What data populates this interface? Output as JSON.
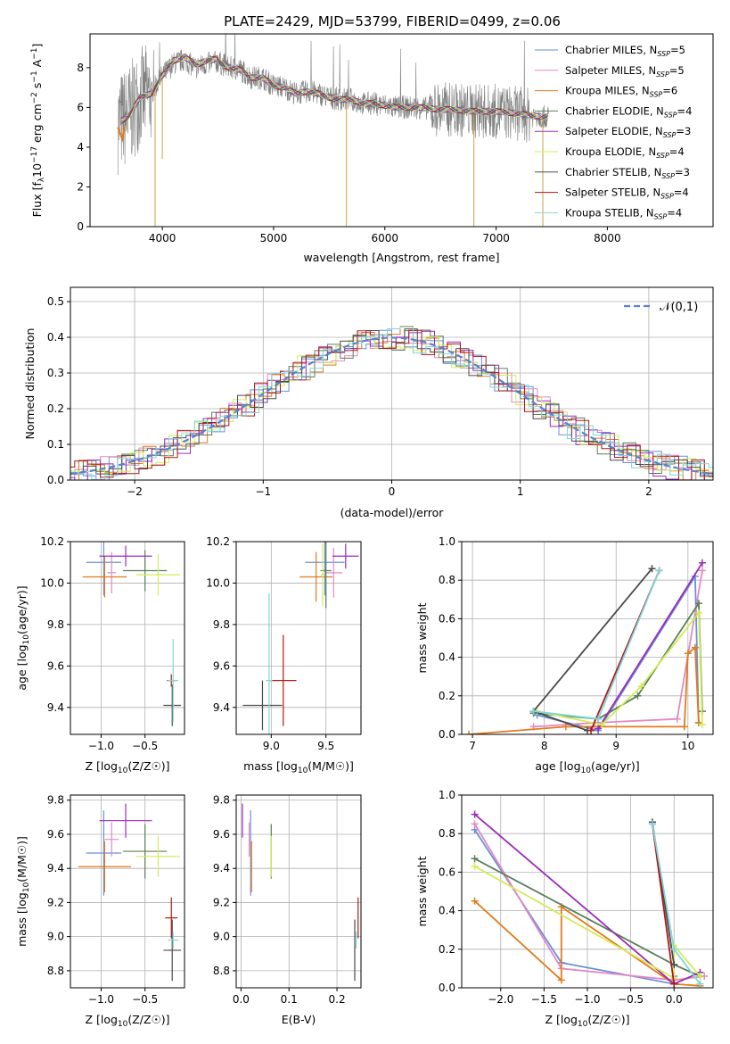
{
  "figure_title": "PLATE=2429, MJD=53799, FIBERID=0499, z=0.06",
  "models": [
    {
      "name": "Chabrier MILES",
      "n": "5",
      "color": "#6a8fdb"
    },
    {
      "name": "Salpeter MILES",
      "n": "5",
      "color": "#e389c2"
    },
    {
      "name": "Kroupa MILES",
      "n": "6",
      "color": "#e07b1e"
    },
    {
      "name": "Chabrier ELODIE",
      "n": "4",
      "color": "#5a7f5a"
    },
    {
      "name": "Salpeter ELODIE",
      "n": "3",
      "color": "#9a2cb8"
    },
    {
      "name": "Kroupa ELODIE",
      "n": "4",
      "color": "#d2ec55"
    },
    {
      "name": "Chabrier STELIB",
      "n": "3",
      "color": "#4b4b4b"
    },
    {
      "name": "Salpeter STELIB",
      "n": "4",
      "color": "#b01818"
    },
    {
      "name": "Kroupa STELIB",
      "n": "4",
      "color": "#7fd6da"
    }
  ],
  "chart_data": [
    {
      "id": "spectrum",
      "type": "line",
      "xlabel": "wavelength [Angstrom, rest frame]",
      "ylabel": "Flux [f",
      "xlim": [
        3350,
        8950
      ],
      "ylim": [
        0,
        9.7
      ],
      "xticks": [
        4000,
        5000,
        6000,
        7000,
        8000
      ],
      "yticks": [
        0,
        2,
        4,
        6,
        8
      ],
      "data_color": "#808080",
      "continuum": [
        [
          3600,
          5.2
        ],
        [
          3700,
          5.6
        ],
        [
          3800,
          6.5
        ],
        [
          3900,
          6.7
        ],
        [
          4000,
          7.6
        ],
        [
          4100,
          8.2
        ],
        [
          4200,
          8.4
        ],
        [
          4300,
          8.0
        ],
        [
          4400,
          8.2
        ],
        [
          4500,
          8.3
        ],
        [
          4600,
          8.0
        ],
        [
          4700,
          7.9
        ],
        [
          4800,
          7.5
        ],
        [
          4900,
          7.5
        ],
        [
          5000,
          7.1
        ],
        [
          5100,
          7.0
        ],
        [
          5200,
          6.7
        ],
        [
          5300,
          6.8
        ],
        [
          5400,
          6.7
        ],
        [
          5500,
          6.5
        ],
        [
          5600,
          6.4
        ],
        [
          5700,
          6.4
        ],
        [
          5800,
          6.2
        ],
        [
          5900,
          6.2
        ],
        [
          6000,
          6.1
        ],
        [
          6100,
          6.0
        ],
        [
          6200,
          6.0
        ],
        [
          6300,
          6.0
        ],
        [
          6400,
          5.95
        ],
        [
          6500,
          5.9
        ],
        [
          6600,
          5.9
        ],
        [
          6700,
          5.85
        ],
        [
          6800,
          5.8
        ],
        [
          6900,
          5.8
        ],
        [
          7000,
          5.8
        ],
        [
          7100,
          5.75
        ],
        [
          7200,
          5.7
        ],
        [
          7300,
          5.6
        ],
        [
          7400,
          5.55
        ],
        [
          7500,
          5.5
        ]
      ],
      "drops": [
        [
          3935,
          0
        ],
        [
          5655,
          0
        ],
        [
          6800,
          0
        ],
        [
          7420,
          0
        ],
        [
          4000,
          3.4
        ]
      ]
    },
    {
      "id": "residuals",
      "type": "bar",
      "xlabel": "(data-model)/error",
      "ylabel": "Normed distribution",
      "xlim": [
        -2.5,
        2.5
      ],
      "ylim": [
        0,
        0.54
      ],
      "xticks": [
        -2,
        -1,
        0,
        1,
        2
      ],
      "yticks": [
        0,
        0.1,
        0.2,
        0.3,
        0.4,
        0.5
      ],
      "legend": "𝒩(0,1)",
      "legend_position": "top-right",
      "curve_color": "#5a82d2",
      "bin_width": 0.1
    },
    {
      "id": "age_vs_Z",
      "type": "scatter",
      "xlabel": "Z [log",
      "ylabel": "age  [log",
      "xlim": [
        -1.35,
        -0.05
      ],
      "ylim": [
        9.27,
        10.2
      ],
      "xticks": [
        -1.0,
        -0.5
      ],
      "yticks": [
        9.4,
        9.6,
        9.8,
        10.0,
        10.2
      ],
      "points": [
        {
          "x": -0.97,
          "y": 10.1,
          "xerr": 0.2,
          "yerr": 0.16,
          "m": 0
        },
        {
          "x": -0.88,
          "y": 10.05,
          "xerr": 0.05,
          "yerr": 0.1,
          "m": 1
        },
        {
          "x": -0.96,
          "y": 10.03,
          "xerr": 0.25,
          "yerr": 0.1,
          "m": 2
        },
        {
          "x": -0.5,
          "y": 10.06,
          "xerr": 0.25,
          "yerr": 0.1,
          "m": 3
        },
        {
          "x": -0.72,
          "y": 10.13,
          "xerr": 0.3,
          "yerr": 0.05,
          "m": 4
        },
        {
          "x": -0.35,
          "y": 10.04,
          "xerr": 0.25,
          "yerr": 0.1,
          "m": 5
        },
        {
          "x": -0.19,
          "y": 9.41,
          "xerr": 0.1,
          "yerr": 0.1,
          "m": 6
        },
        {
          "x": -0.2,
          "y": 9.53,
          "xerr": 0.05,
          "yerr": 0.03,
          "m": 7
        },
        {
          "x": -0.18,
          "y": 9.53,
          "xerr": 0.06,
          "yerr": 0.2,
          "m": 8
        }
      ]
    },
    {
      "id": "age_vs_mass",
      "type": "scatter",
      "xlabel": "mass [log",
      "ylabel": "",
      "xlim": [
        8.68,
        9.82
      ],
      "ylim": [
        9.27,
        10.2
      ],
      "xticks": [
        9.0,
        9.5
      ],
      "yticks": [
        9.4,
        9.6,
        9.8,
        10.0,
        10.2
      ],
      "points": [
        {
          "x": 9.49,
          "y": 10.1,
          "xerr": 0.18,
          "yerr": 0.16,
          "m": 0
        },
        {
          "x": 9.57,
          "y": 10.05,
          "xerr": 0.08,
          "yerr": 0.12,
          "m": 1
        },
        {
          "x": 9.41,
          "y": 10.03,
          "xerr": 0.15,
          "yerr": 0.12,
          "m": 2
        },
        {
          "x": 9.5,
          "y": 10.06,
          "xerr": 0.05,
          "yerr": 0.18,
          "m": 3
        },
        {
          "x": 9.68,
          "y": 10.13,
          "xerr": 0.12,
          "yerr": 0.06,
          "m": 4
        },
        {
          "x": 9.47,
          "y": 10.04,
          "xerr": 0.02,
          "yerr": 0.15,
          "m": 5
        },
        {
          "x": 8.92,
          "y": 9.41,
          "xerr": 0.18,
          "yerr": 0.12,
          "m": 6
        },
        {
          "x": 9.11,
          "y": 9.53,
          "xerr": 0.12,
          "yerr": 0.22,
          "m": 7
        },
        {
          "x": 8.98,
          "y": 9.53,
          "xerr": 0.03,
          "yerr": 0.42,
          "m": 8
        }
      ]
    },
    {
      "id": "weight_vs_age",
      "type": "line",
      "xlabel": "age  [log",
      "ylabel": "mass weight",
      "xlim": [
        6.85,
        10.35
      ],
      "ylim": [
        0,
        1.0
      ],
      "xticks": [
        7,
        8,
        9,
        10
      ],
      "yticks": [
        0,
        0.2,
        0.4,
        0.6,
        0.8,
        1.0
      ],
      "series": [
        {
          "m": 0,
          "x": [
            7.9,
            8.75,
            10.1,
            10.15
          ],
          "y": [
            0.1,
            0.02,
            0.82,
            0.06
          ]
        },
        {
          "m": 1,
          "x": [
            7.85,
            8.7,
            9.85,
            10.2
          ],
          "y": [
            0.04,
            0.06,
            0.08,
            0.85
          ]
        },
        {
          "m": 2,
          "x": [
            6.95,
            8.3,
            9.95,
            10.0,
            10.1,
            10.15
          ],
          "y": [
            0.0,
            0.04,
            0.04,
            0.42,
            0.45,
            0.06
          ]
        },
        {
          "m": 3,
          "x": [
            7.85,
            8.75,
            9.3,
            10.15,
            10.2
          ],
          "y": [
            0.11,
            0.08,
            0.2,
            0.68,
            0.12
          ]
        },
        {
          "m": 4,
          "x": [
            8.75,
            10.2
          ],
          "y": [
            0.03,
            0.89
          ]
        },
        {
          "m": 5,
          "x": [
            7.9,
            8.8,
            9.35,
            10.15,
            10.2
          ],
          "y": [
            0.12,
            0.05,
            0.25,
            0.63,
            0.05
          ]
        },
        {
          "m": 6,
          "x": [
            8.6,
            7.85,
            9.5
          ],
          "y": [
            0.02,
            0.12,
            0.86
          ]
        },
        {
          "m": 7,
          "x": [
            8.65,
            9.6
          ],
          "y": [
            0.02,
            0.85
          ]
        },
        {
          "m": 8,
          "x": [
            7.85,
            8.75,
            9.6
          ],
          "y": [
            0.12,
            0.08,
            0.85
          ]
        }
      ]
    },
    {
      "id": "mass_vs_Z",
      "type": "scatter",
      "xlabel": "Z [log",
      "ylabel": "mass [log",
      "xlim": [
        -1.35,
        -0.05
      ],
      "ylim": [
        8.7,
        9.83
      ],
      "xticks": [
        -1.0,
        -0.5
      ],
      "yticks": [
        8.8,
        9.0,
        9.2,
        9.4,
        9.6,
        9.8
      ],
      "points": [
        {
          "x": -0.97,
          "y": 9.49,
          "xerr": 0.2,
          "yerr": 0.25,
          "m": 0
        },
        {
          "x": -0.88,
          "y": 9.57,
          "xerr": 0.08,
          "yerr": 0.1,
          "m": 1
        },
        {
          "x": -0.96,
          "y": 9.41,
          "xerr": 0.3,
          "yerr": 0.15,
          "m": 2
        },
        {
          "x": -0.5,
          "y": 9.5,
          "xerr": 0.25,
          "yerr": 0.16,
          "m": 3
        },
        {
          "x": -0.72,
          "y": 9.68,
          "xerr": 0.3,
          "yerr": 0.1,
          "m": 4
        },
        {
          "x": -0.35,
          "y": 9.47,
          "xerr": 0.25,
          "yerr": 0.12,
          "m": 5
        },
        {
          "x": -0.19,
          "y": 8.92,
          "xerr": 0.1,
          "yerr": 0.18,
          "m": 6
        },
        {
          "x": -0.2,
          "y": 9.11,
          "xerr": 0.07,
          "yerr": 0.12,
          "m": 7
        },
        {
          "x": -0.18,
          "y": 8.98,
          "xerr": 0.06,
          "yerr": 0.05,
          "m": 8
        }
      ]
    },
    {
      "id": "mass_vs_ebv",
      "type": "scatter",
      "xlabel": "E(B-V)",
      "ylabel": "",
      "xlim": [
        -0.01,
        0.25
      ],
      "ylim": [
        8.7,
        9.83
      ],
      "xticks": [
        0.0,
        0.1,
        0.2
      ],
      "yticks": [
        8.8,
        9.0,
        9.2,
        9.4,
        9.6,
        9.8
      ],
      "points": [
        {
          "x": 0.02,
          "y": 9.49,
          "xerr": 0,
          "yerr": 0.25,
          "m": 0
        },
        {
          "x": 0.017,
          "y": 9.57,
          "xerr": 0,
          "yerr": 0.1,
          "m": 1
        },
        {
          "x": 0.022,
          "y": 9.41,
          "xerr": 0,
          "yerr": 0.15,
          "m": 2
        },
        {
          "x": 0.063,
          "y": 9.5,
          "xerr": 0,
          "yerr": 0.16,
          "m": 3
        },
        {
          "x": 0.003,
          "y": 9.68,
          "xerr": 0,
          "yerr": 0.1,
          "m": 4
        },
        {
          "x": 0.063,
          "y": 9.47,
          "xerr": 0,
          "yerr": 0.12,
          "m": 5
        },
        {
          "x": 0.237,
          "y": 8.92,
          "xerr": 0,
          "yerr": 0.18,
          "m": 6
        },
        {
          "x": 0.244,
          "y": 9.11,
          "xerr": 0,
          "yerr": 0.12,
          "m": 7
        },
        {
          "x": 0.24,
          "y": 8.98,
          "xerr": 0,
          "yerr": 0.05,
          "m": 8
        }
      ]
    },
    {
      "id": "weight_vs_Z",
      "type": "line",
      "xlabel": "Z [log",
      "ylabel": "mass weight",
      "xlim": [
        -2.45,
        0.45
      ],
      "ylim": [
        0,
        1.0
      ],
      "xticks": [
        -2.0,
        -1.5,
        -1.0,
        -0.5,
        0.0
      ],
      "yticks": [
        0,
        0.2,
        0.4,
        0.6,
        0.8,
        1.0
      ],
      "series": [
        {
          "m": 0,
          "x": [
            -2.3,
            -1.3,
            0.0,
            0.0
          ],
          "y": [
            0.82,
            0.13,
            0.02,
            0.06
          ]
        },
        {
          "m": 1,
          "x": [
            -2.3,
            -1.3,
            0.0,
            0.35
          ],
          "y": [
            0.85,
            0.1,
            0.04,
            0.06
          ]
        },
        {
          "m": 2,
          "x": [
            -2.3,
            -1.3,
            -1.3,
            0.0,
            0.3
          ],
          "y": [
            0.45,
            0.04,
            0.42,
            0.02,
            0.01
          ]
        },
        {
          "m": 3,
          "x": [
            -2.3,
            0.0,
            0.3
          ],
          "y": [
            0.67,
            0.12,
            0.06
          ]
        },
        {
          "m": 4,
          "x": [
            -2.3,
            0.0,
            0.3
          ],
          "y": [
            0.9,
            0.02,
            0.08
          ]
        },
        {
          "m": 5,
          "x": [
            -2.3,
            0.0,
            0.0,
            0.3
          ],
          "y": [
            0.63,
            0.05,
            0.22,
            0.06
          ]
        },
        {
          "m": 6,
          "x": [
            -0.25,
            0.0
          ],
          "y": [
            0.86,
            0.12
          ]
        },
        {
          "m": 7,
          "x": [
            -0.25,
            0.0
          ],
          "y": [
            0.85,
            0.02
          ]
        },
        {
          "m": 8,
          "x": [
            -0.25,
            0.0,
            0.3
          ],
          "y": [
            0.85,
            0.2,
            0.02
          ]
        }
      ]
    }
  ]
}
